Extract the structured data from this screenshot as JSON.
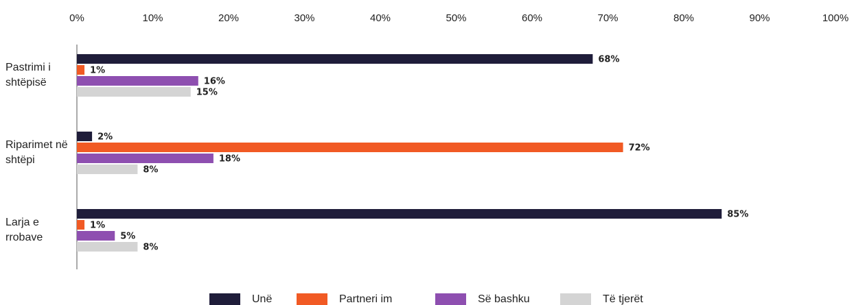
{
  "chart_data": {
    "type": "bar",
    "orientation": "horizontal",
    "categories": [
      "Pastrimi i shtëpisë",
      "Riparimet në shtëpi",
      "Larja e rrobave"
    ],
    "series": [
      {
        "name": "Unë",
        "color": "#1f1d3a",
        "values": [
          68,
          2,
          85
        ],
        "value_labels": [
          "68%",
          "2%",
          "85%"
        ]
      },
      {
        "name": "Partneri im",
        "color": "#f15a24",
        "values": [
          1,
          72,
          1
        ],
        "value_labels": [
          "1%",
          "72%",
          "1%"
        ]
      },
      {
        "name": "Së bashku",
        "color": "#8e4fb0",
        "values": [
          16,
          18,
          5
        ],
        "value_labels": [
          "16%",
          "18%",
          "5%"
        ]
      },
      {
        "name": "Të tjerët",
        "color": "#d4d4d4",
        "values": [
          15,
          8,
          8
        ],
        "value_labels": [
          "15%",
          "8%",
          "8%"
        ]
      }
    ],
    "xlim": [
      0,
      100
    ],
    "xticks": [
      {
        "value": 0,
        "label": "0%"
      },
      {
        "value": 10,
        "label": "10%"
      },
      {
        "value": 20,
        "label": "20%"
      },
      {
        "value": 30,
        "label": "30%"
      },
      {
        "value": 40,
        "label": "40%"
      },
      {
        "value": 50,
        "label": "50%"
      },
      {
        "value": 60,
        "label": "60%"
      },
      {
        "value": 70,
        "label": "70%"
      },
      {
        "value": 80,
        "label": "80%"
      },
      {
        "value": 90,
        "label": "90%"
      },
      {
        "value": 100,
        "label": "100%"
      }
    ],
    "grid": false,
    "legend": "bottom"
  }
}
